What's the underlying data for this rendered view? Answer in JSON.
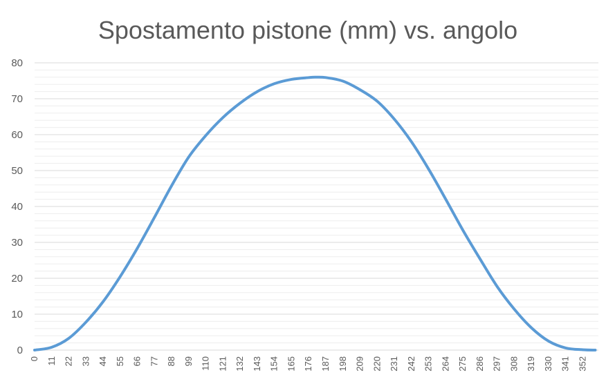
{
  "chart_data": {
    "type": "line",
    "title": "Spostamento pistone (mm) vs. angolo",
    "xlabel": "",
    "ylabel": "",
    "ylim": [
      0,
      80
    ],
    "y_ticks": [
      0,
      10,
      20,
      30,
      40,
      50,
      60,
      70,
      80
    ],
    "x_tick_labels": [
      "0",
      "11",
      "22",
      "33",
      "44",
      "55",
      "66",
      "77",
      "88",
      "99",
      "110",
      "121",
      "132",
      "143",
      "154",
      "165",
      "176",
      "187",
      "198",
      "209",
      "220",
      "231",
      "242",
      "253",
      "264",
      "275",
      "286",
      "297",
      "308",
      "319",
      "330",
      "341",
      "352"
    ],
    "x_range": [
      0,
      362
    ],
    "grid": true,
    "legend": "none",
    "series_color": "#5b9bd5",
    "series": [
      {
        "x": [
          0,
          11,
          22,
          33,
          44,
          55,
          66,
          77,
          88,
          99,
          110,
          121,
          132,
          143,
          154,
          165,
          176,
          180,
          187,
          198,
          209,
          220,
          231,
          242,
          253,
          264,
          275,
          286,
          297,
          308,
          319,
          330,
          341,
          352,
          360
        ],
        "values": [
          0.0,
          0.8,
          3.3,
          7.8,
          13.5,
          20.5,
          28.4,
          37.0,
          45.8,
          53.8,
          59.8,
          64.8,
          68.8,
          72.0,
          74.2,
          75.4,
          75.9,
          76.0,
          75.9,
          74.9,
          72.5,
          69.3,
          64.3,
          58.0,
          50.4,
          42.0,
          33.4,
          25.4,
          17.7,
          11.4,
          6.2,
          2.5,
          0.6,
          0.1,
          0.0
        ]
      }
    ]
  }
}
